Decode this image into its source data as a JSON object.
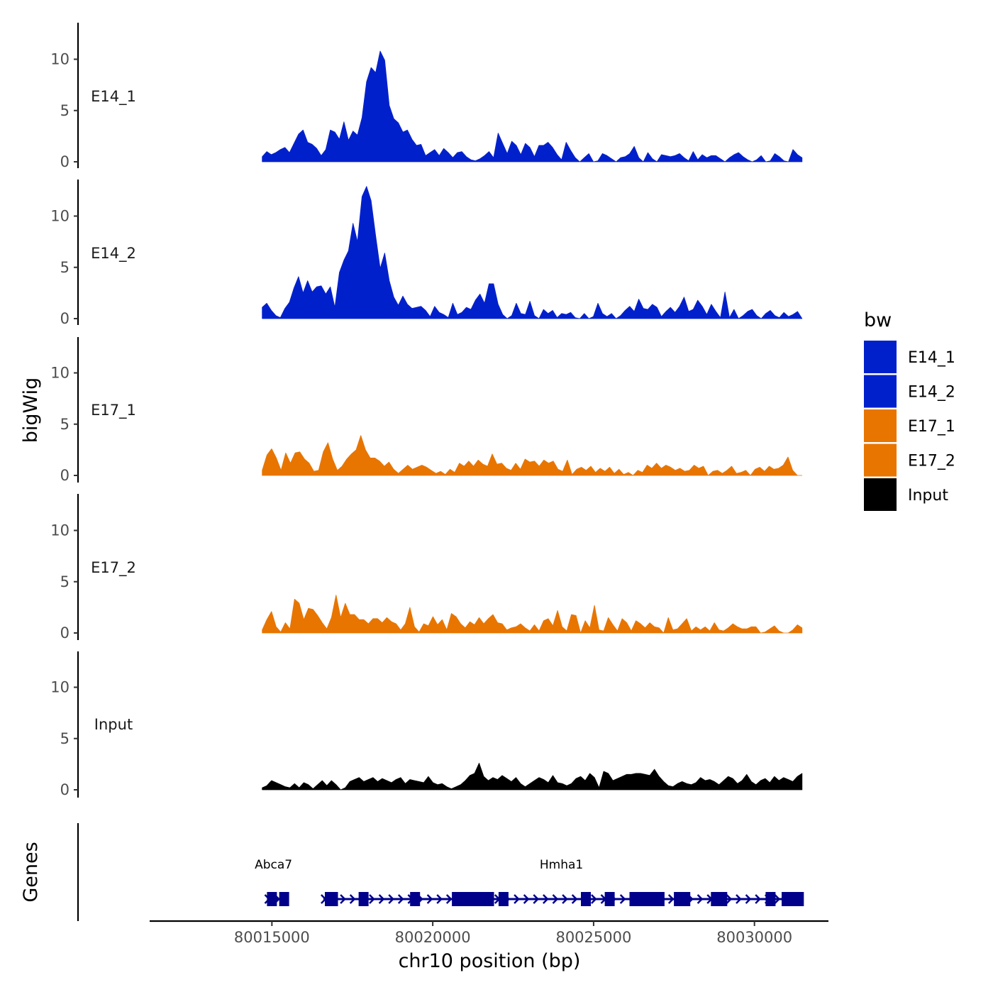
{
  "chart_data": {
    "type": "area",
    "ylabel": "bigWig",
    "xlabel": "chr10 position (bp)",
    "ylim": [
      0,
      13.5
    ],
    "y_ticks": [
      0,
      5,
      10
    ],
    "x_ticks": [
      80015000,
      80020000,
      80025000,
      80030000
    ],
    "x_tick_labels": [
      "80015000",
      "80020000",
      "80025000",
      "80030000"
    ],
    "xlim": [
      80011200,
      80032300
    ],
    "track_range": [
      80014700,
      80031480
    ],
    "legend": {
      "title": "bw",
      "position": "right",
      "entries": [
        {
          "label": "E14_1",
          "color": "#0020CC"
        },
        {
          "label": "E14_2",
          "color": "#0020CC"
        },
        {
          "label": "E17_1",
          "color": "#E87500"
        },
        {
          "label": "E17_2",
          "color": "#E87500"
        },
        {
          "label": "Input",
          "color": "#000000"
        }
      ]
    },
    "series": [
      {
        "name": "E14_1",
        "color": "#0020CC",
        "values": [
          0.5,
          1.0,
          0.7,
          0.9,
          1.2,
          1.4,
          0.9,
          1.8,
          2.7,
          3.1,
          1.9,
          1.7,
          1.3,
          0.6,
          1.2,
          3.1,
          2.9,
          2.2,
          3.9,
          2.1,
          3.0,
          2.6,
          4.3,
          7.8,
          9.2,
          8.7,
          10.8,
          9.9,
          5.5,
          4.2,
          3.8,
          2.9,
          3.1,
          2.2,
          1.6,
          1.7,
          0.6,
          0.9,
          1.2,
          0.6,
          1.3,
          0.9,
          0.4,
          0.9,
          1.0,
          0.5,
          0.2,
          0.1,
          0.3,
          0.6,
          1.0,
          0.4,
          2.8,
          1.8,
          0.8,
          2.0,
          1.6,
          0.7,
          1.8,
          1.4,
          0.5,
          1.6,
          1.6,
          1.9,
          1.4,
          0.7,
          0.2,
          1.9,
          1.1,
          0.4,
          0.0,
          0.4,
          0.8,
          0.0,
          0.1,
          0.8,
          0.6,
          0.3,
          0.0,
          0.4,
          0.5,
          0.8,
          1.5,
          0.4,
          0.0,
          0.9,
          0.3,
          0.0,
          0.7,
          0.6,
          0.5,
          0.6,
          0.8,
          0.4,
          0.1,
          1.0,
          0.2,
          0.7,
          0.4,
          0.6,
          0.6,
          0.3,
          0.0,
          0.4,
          0.7,
          0.9,
          0.5,
          0.2,
          0.0,
          0.2,
          0.6,
          0.0,
          0.1,
          0.8,
          0.5,
          0.1,
          0.0,
          1.2,
          0.7,
          0.4
        ]
      },
      {
        "name": "E14_2",
        "color": "#0020CC",
        "values": [
          1.1,
          1.5,
          0.8,
          0.3,
          0.1,
          1.0,
          1.6,
          3.0,
          4.1,
          2.5,
          3.7,
          2.6,
          3.1,
          3.2,
          2.4,
          3.1,
          1.1,
          4.5,
          5.7,
          6.6,
          9.3,
          7.5,
          11.9,
          12.9,
          11.5,
          8.1,
          4.9,
          6.4,
          3.7,
          2.1,
          1.3,
          2.2,
          1.4,
          1.0,
          1.1,
          1.2,
          0.8,
          0.2,
          1.2,
          0.6,
          0.4,
          0.1,
          1.5,
          0.4,
          0.6,
          1.1,
          0.9,
          1.8,
          2.4,
          1.5,
          3.4,
          3.4,
          1.4,
          0.4,
          0.0,
          0.3,
          1.5,
          0.5,
          0.4,
          1.7,
          0.3,
          0.0,
          0.9,
          0.5,
          0.8,
          0.1,
          0.5,
          0.4,
          0.6,
          0.1,
          0.0,
          0.5,
          0.0,
          0.2,
          1.5,
          0.5,
          0.2,
          0.5,
          0.0,
          0.3,
          0.8,
          1.2,
          0.7,
          1.9,
          1.0,
          0.9,
          1.4,
          1.1,
          0.2,
          0.7,
          1.1,
          0.6,
          1.2,
          2.1,
          0.7,
          0.9,
          1.8,
          1.2,
          0.4,
          1.4,
          0.7,
          0.1,
          2.6,
          0.1,
          0.9,
          0.0,
          0.3,
          0.7,
          0.9,
          0.3,
          0.0,
          0.5,
          0.8,
          0.3,
          0.1,
          0.6,
          0.2,
          0.4,
          0.7,
          0.0
        ]
      },
      {
        "name": "E17_1",
        "color": "#E87500",
        "values": [
          0.5,
          2.0,
          2.6,
          1.7,
          0.5,
          2.2,
          1.2,
          2.2,
          2.3,
          1.6,
          1.2,
          0.4,
          0.5,
          2.3,
          3.2,
          1.6,
          0.5,
          0.9,
          1.6,
          2.1,
          2.5,
          3.9,
          2.5,
          1.7,
          1.7,
          1.4,
          0.9,
          1.3,
          0.6,
          0.2,
          0.6,
          1.0,
          0.6,
          0.8,
          1.0,
          0.8,
          0.5,
          0.2,
          0.4,
          0.1,
          0.6,
          0.3,
          1.2,
          0.9,
          1.4,
          0.9,
          1.5,
          1.1,
          0.9,
          2.1,
          1.1,
          1.2,
          0.7,
          0.5,
          1.2,
          0.6,
          1.6,
          1.3,
          1.4,
          0.9,
          1.5,
          1.2,
          1.4,
          0.6,
          0.4,
          1.5,
          0.1,
          0.6,
          0.8,
          0.5,
          0.9,
          0.3,
          0.7,
          0.4,
          0.8,
          0.2,
          0.6,
          0.1,
          0.3,
          0.0,
          0.5,
          0.3,
          1.0,
          0.7,
          1.2,
          0.7,
          1.0,
          0.8,
          0.5,
          0.7,
          0.4,
          0.5,
          1.0,
          0.7,
          0.9,
          0.0,
          0.4,
          0.5,
          0.2,
          0.5,
          0.9,
          0.2,
          0.3,
          0.5,
          0.0,
          0.6,
          0.8,
          0.4,
          0.9,
          0.6,
          0.7,
          1.0,
          1.8,
          0.5,
          0.0,
          0.0
        ]
      },
      {
        "name": "E17_2",
        "color": "#E87500",
        "values": [
          0.3,
          1.3,
          2.1,
          0.6,
          0.1,
          1.0,
          0.4,
          3.3,
          2.9,
          1.3,
          2.4,
          2.3,
          1.7,
          1.0,
          0.4,
          1.5,
          3.7,
          1.5,
          2.9,
          1.8,
          1.8,
          1.3,
          1.3,
          0.9,
          1.4,
          1.4,
          1.0,
          1.5,
          1.1,
          0.9,
          0.3,
          0.9,
          2.5,
          0.6,
          0.1,
          0.9,
          0.7,
          1.6,
          0.8,
          1.3,
          0.3,
          1.9,
          1.6,
          0.9,
          0.5,
          1.1,
          0.8,
          1.5,
          0.9,
          1.4,
          1.8,
          1.0,
          0.9,
          0.3,
          0.5,
          0.6,
          0.9,
          0.5,
          0.2,
          0.8,
          0.2,
          1.2,
          1.4,
          0.7,
          2.2,
          0.6,
          0.2,
          1.8,
          1.7,
          0.0,
          1.2,
          0.5,
          2.7,
          0.3,
          0.2,
          1.5,
          0.8,
          0.2,
          1.4,
          1.0,
          0.2,
          1.2,
          0.9,
          0.5,
          1.0,
          0.6,
          0.5,
          0.0,
          1.5,
          0.3,
          0.4,
          0.9,
          1.4,
          0.2,
          0.6,
          0.3,
          0.6,
          0.2,
          1.0,
          0.3,
          0.2,
          0.5,
          0.9,
          0.6,
          0.4,
          0.4,
          0.6,
          0.6,
          0.0,
          0.1,
          0.4,
          0.7,
          0.2,
          0.0,
          0.0,
          0.3,
          0.8,
          0.5
        ]
      },
      {
        "name": "Input",
        "color": "#000000",
        "values": [
          0.2,
          0.4,
          0.9,
          0.7,
          0.5,
          0.3,
          0.2,
          0.6,
          0.2,
          0.7,
          0.5,
          0.1,
          0.5,
          0.9,
          0.4,
          0.9,
          0.5,
          0.0,
          0.2,
          0.8,
          1.0,
          1.2,
          0.8,
          1.0,
          1.2,
          0.8,
          1.1,
          0.9,
          0.7,
          1.0,
          1.2,
          0.6,
          1.0,
          0.9,
          0.8,
          0.7,
          1.3,
          0.7,
          0.5,
          0.6,
          0.3,
          0.1,
          0.3,
          0.5,
          0.9,
          1.4,
          1.6,
          2.6,
          1.3,
          0.9,
          1.2,
          1.0,
          1.4,
          1.1,
          0.8,
          1.2,
          0.6,
          0.3,
          0.6,
          0.9,
          1.2,
          1.0,
          0.7,
          1.4,
          0.7,
          0.6,
          0.4,
          0.6,
          1.1,
          1.3,
          0.9,
          1.6,
          1.2,
          0.2,
          1.8,
          1.6,
          0.9,
          1.1,
          1.3,
          1.5,
          1.5,
          1.6,
          1.6,
          1.5,
          1.4,
          2.0,
          1.3,
          0.8,
          0.4,
          0.3,
          0.6,
          0.8,
          0.6,
          0.5,
          0.7,
          1.2,
          0.9,
          1.0,
          0.8,
          0.5,
          0.9,
          1.3,
          1.1,
          0.6,
          0.9,
          1.5,
          0.8,
          0.5,
          0.9,
          1.1,
          0.7,
          1.3,
          0.9,
          1.2,
          1.0,
          0.8,
          1.3,
          1.6
        ]
      }
    ],
    "genes": {
      "title": "Genes",
      "color": "#00008B",
      "items": [
        {
          "name": "Abca7",
          "start": 80014850,
          "end": 80015500,
          "label_pos": 80015050,
          "exons": [
            80015000,
            80015380
          ]
        },
        {
          "name": "Hmha1",
          "start": 80016600,
          "end": 80031500,
          "label_pos": 80024000,
          "exons": [
            80016800,
            80016900,
            80017850,
            80019450,
            80020750,
            80020900,
            80021000,
            80021200,
            80021300,
            80021600,
            80021750,
            80022200,
            80024760,
            80025500,
            80026270,
            80026500,
            80026680,
            80026850,
            80027050,
            80027650,
            80027850,
            80028800,
            80029000,
            80030500,
            80031000,
            80031200,
            80031380
          ]
        }
      ]
    }
  }
}
